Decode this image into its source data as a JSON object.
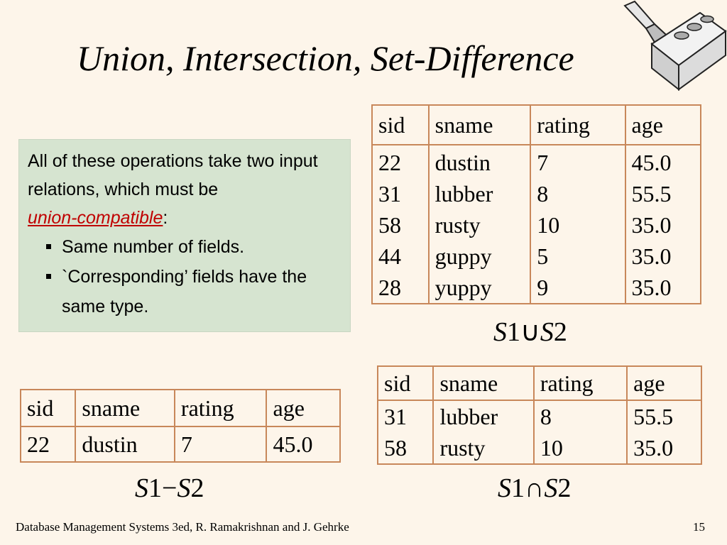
{
  "title": "Union, Intersection, Set-Difference",
  "callout": {
    "intro": "All of these operations take two input relations, which must be",
    "term": "union-compatible",
    "term_suffix": ":",
    "bullets": [
      "Same number of fields.",
      "`Corresponding’ fields have the same type."
    ]
  },
  "columns": [
    "sid",
    "sname",
    "rating",
    "age"
  ],
  "union": {
    "rows": [
      [
        "22",
        "dustin",
        "7",
        "45.0"
      ],
      [
        "31",
        "lubber",
        "8",
        "55.5"
      ],
      [
        "58",
        "rusty",
        "10",
        "35.0"
      ],
      [
        "44",
        "guppy",
        "5",
        "35.0"
      ],
      [
        "28",
        "yuppy",
        "9",
        "35.0"
      ]
    ],
    "caption": {
      "left": "S",
      "left_num": "1",
      "op": "∪",
      "right": "S",
      "right_num": "2"
    }
  },
  "difference": {
    "rows": [
      [
        "22",
        "dustin",
        "7",
        "45.0"
      ]
    ],
    "caption": {
      "left": "S",
      "left_num": "1",
      "op": "−",
      "right": "S",
      "right_num": "2"
    }
  },
  "intersection": {
    "rows": [
      [
        "31",
        "lubber",
        "8",
        "55.5"
      ],
      [
        "58",
        "rusty",
        "10",
        "35.0"
      ]
    ],
    "caption": {
      "left": "S",
      "left_num": "1",
      "op": "∩",
      "right": "S",
      "right_num": "2"
    }
  },
  "footer": "Database Management Systems 3ed,  R. Ramakrishnan and J. Gehrke",
  "page_number": "15",
  "colors": {
    "background": "#fdf5ea",
    "callout": "#d6e4d0",
    "table_border": "#c8875a",
    "emphasis": "#c00000"
  },
  "icons": [
    "brick-trowel-icon",
    "square-bullet-icon"
  ]
}
